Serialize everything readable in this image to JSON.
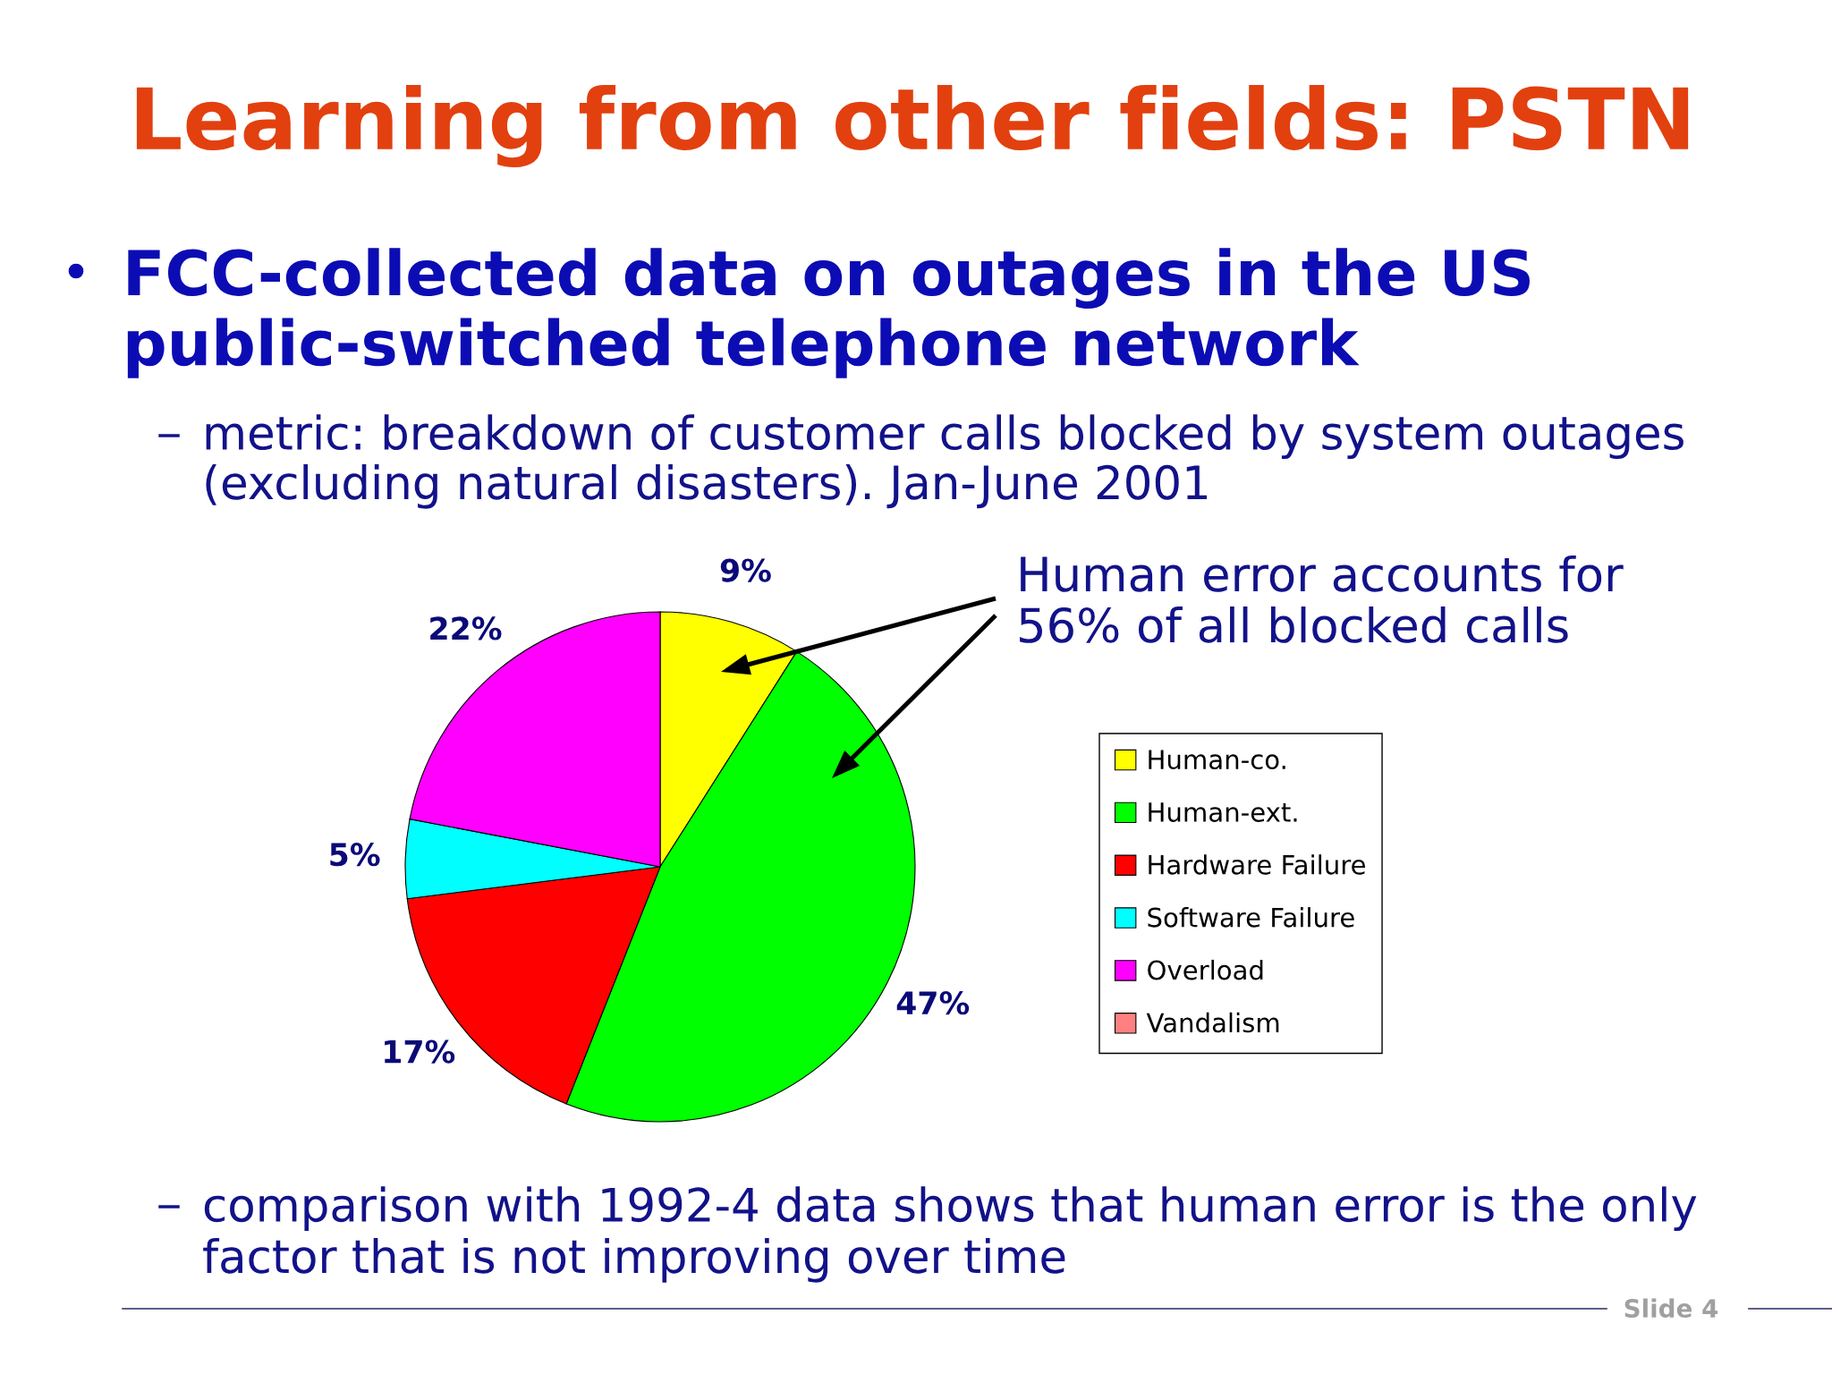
{
  "chart_data": {
    "type": "pie",
    "title": "Learning from other fields: PSTN",
    "subtitle": "FCC-collected data on outages in the US\npublic-switched telephone network",
    "categories": [
      "Human-co.",
      "Human-ext.",
      "Hardware Failure",
      "Software Failure",
      "Overload",
      "Vandalism"
    ],
    "values": [
      9,
      47,
      17,
      5,
      22,
      0
    ],
    "colors": [
      "#ffff00",
      "#00ff00",
      "#ff0000",
      "#00ffff",
      "#ff00ff",
      "#ff8080"
    ],
    "value_labels": [
      "9%",
      "47%",
      "17%",
      "5%",
      "22%",
      null
    ],
    "legend": "right",
    "annotations": [
      "metric: breakdown of customer calls blocked by system outages\n(excluding natural disasters). Jan-June 2001",
      "Human error accounts for\n56% of all blocked calls",
      "comparison with 1992-4 data shows that human error is the only\nfactor that is not improving over time",
      "Slide 4"
    ]
  }
}
